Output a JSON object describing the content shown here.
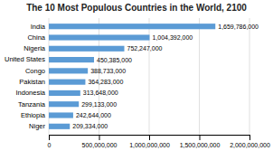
{
  "chart_data": {
    "type": "bar",
    "orientation": "horizontal",
    "title": "The 10 Most Populous Countries in the World, 2100",
    "categories": [
      "Niger",
      "Ethiopia",
      "Tanzania",
      "Indonesia",
      "Pakistan",
      "Congo",
      "United States",
      "Nigeria",
      "China",
      "India"
    ],
    "values": [
      209334000,
      242644000,
      299133000,
      313648000,
      364283000,
      388733000,
      450385000,
      752247000,
      1004392000,
      1659786000
    ],
    "value_labels": [
      "209,334,000",
      "242,644,000",
      "299,133,000",
      "313,648,000",
      "364,283,000",
      "388,733,000",
      "450,385,000",
      "752,247,000",
      "1,004,392,000",
      "1,659,786,000"
    ],
    "data_labels": true,
    "color": "#5B9BD5",
    "xlim": [
      0,
      2000000000
    ],
    "xticks": [
      0,
      {
        "value": 500000000,
        "label": "500,000,000"
      },
      {
        "value": 1000000000,
        "label": "1,000,000,000"
      },
      {
        "value": 1500000000,
        "label": "1,500,000,000"
      },
      {
        "value": 2000000000,
        "label": "2,000,000,000"
      }
    ],
    "grid": true
  }
}
